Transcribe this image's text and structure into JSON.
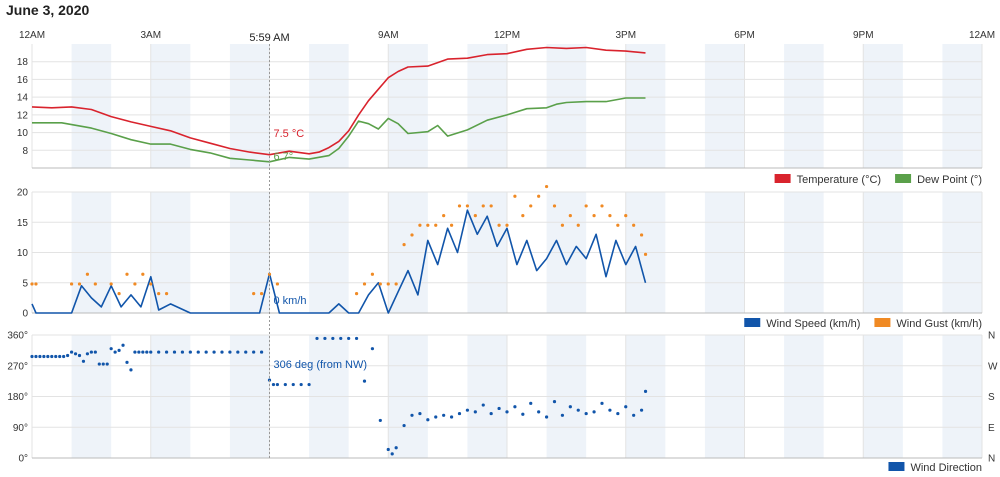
{
  "title": "June 3, 2020",
  "cursor_time": "5:59 AM",
  "time_axis": {
    "labels": [
      "12AM",
      "3AM",
      "6AM",
      "9AM",
      "12PM",
      "3PM",
      "6PM",
      "9PM",
      "12AM"
    ],
    "range_hours": [
      0,
      24
    ]
  },
  "chart_data": [
    {
      "type": "line",
      "x_unit": "hour of day",
      "ylim": [
        6,
        20
      ],
      "yticks": [
        "8",
        "10",
        "12",
        "14",
        "16",
        "18"
      ],
      "ytick_values": [
        8,
        10,
        12,
        14,
        16,
        18
      ],
      "colors": {
        "temperature": "#d9232d",
        "dew_point": "#5aa04a"
      },
      "legend": [
        "Temperature (°C)",
        "Dew Point (°)"
      ],
      "legend_position": "bottom-right",
      "readout": {
        "temperature": "7.5 °C",
        "dew_point": "6.7°"
      },
      "series": [
        {
          "name": "Temperature (°C)",
          "x": [
            0,
            0.5,
            1,
            1.5,
            2,
            2.5,
            3,
            3.5,
            4,
            4.5,
            5,
            5.5,
            6,
            6.5,
            7,
            7.25,
            7.5,
            7.75,
            8,
            8.25,
            8.5,
            9,
            9.25,
            9.5,
            10,
            10.5,
            11,
            11.5,
            12,
            12.5,
            13,
            13.5,
            14,
            14.5,
            15,
            15.5
          ],
          "y": [
            12.9,
            12.8,
            12.9,
            12.6,
            11.8,
            11.2,
            10.7,
            10.2,
            9.4,
            8.8,
            8.2,
            7.8,
            7.5,
            7.9,
            7.6,
            7.8,
            8.3,
            9.0,
            10.2,
            12.0,
            13.6,
            16.2,
            16.9,
            17.4,
            17.5,
            18.3,
            18.4,
            18.8,
            18.9,
            19.4,
            19.6,
            19.5,
            19.6,
            19.3,
            19.2,
            19.0
          ]
        },
        {
          "name": "Dew Point (°)",
          "x": [
            0,
            0.75,
            1.5,
            2,
            2.5,
            3,
            3.5,
            4,
            4.5,
            5,
            5.5,
            6,
            6.5,
            7,
            7.5,
            7.75,
            8,
            8.25,
            8.5,
            8.75,
            9,
            9.25,
            9.5,
            10,
            10.25,
            10.5,
            11,
            11.5,
            12,
            12.5,
            13,
            13.25,
            13.5,
            14,
            14.5,
            15,
            15.5
          ],
          "y": [
            11.1,
            11.1,
            10.5,
            9.9,
            9.2,
            8.7,
            8.7,
            8.1,
            7.7,
            7.1,
            6.9,
            6.7,
            7.2,
            7.0,
            7.4,
            8.2,
            9.6,
            11.3,
            11.0,
            10.4,
            11.6,
            11.0,
            9.9,
            10.1,
            10.8,
            9.6,
            10.3,
            11.4,
            12.0,
            12.7,
            12.8,
            13.2,
            13.4,
            13.5,
            13.5,
            13.9,
            13.9
          ]
        }
      ]
    },
    {
      "type": "line",
      "x_unit": "hour of day",
      "ylim": [
        0,
        20
      ],
      "yticks": [
        "0",
        "5",
        "10",
        "15",
        "20"
      ],
      "ytick_values": [
        0,
        5,
        10,
        15,
        20
      ],
      "colors": {
        "wind_speed": "#1155aa",
        "wind_gust": "#f08a24"
      },
      "legend": [
        "Wind Speed (km/h)",
        "Wind Gust (km/h)"
      ],
      "legend_position": "bottom-right",
      "readout": {
        "wind_speed": "0 km/h"
      },
      "series": [
        {
          "name": "Wind Speed (km/h)",
          "x": [
            0,
            0.1,
            1,
            1.25,
            1.5,
            1.75,
            2,
            2.25,
            2.5,
            2.75,
            3,
            3.2,
            3.5,
            4,
            5.5,
            5.75,
            6,
            6.25,
            6.5,
            7,
            7.5,
            7.75,
            8,
            8.25,
            8.5,
            8.75,
            9,
            9.25,
            9.5,
            9.75,
            10,
            10.25,
            10.5,
            10.75,
            11,
            11.25,
            11.5,
            11.75,
            12,
            12.25,
            12.5,
            12.75,
            13,
            13.25,
            13.5,
            13.75,
            14,
            14.25,
            14.5,
            14.75,
            15,
            15.25,
            15.5
          ],
          "y": [
            1.5,
            0,
            0,
            4.5,
            2.5,
            1,
            4.5,
            1,
            3,
            1,
            6,
            0.5,
            1.5,
            0,
            0,
            0,
            6.5,
            0,
            0,
            0,
            0,
            1.5,
            0,
            0,
            3,
            5,
            0,
            3.5,
            7,
            3,
            12,
            8,
            14,
            10,
            17,
            13,
            16,
            11,
            14,
            8,
            12,
            7,
            9,
            12,
            8,
            11,
            9,
            13,
            6,
            12,
            8,
            11,
            5
          ]
        },
        {
          "name": "Wind Gust (km/h)",
          "x": [
            0,
            0.1,
            1,
            1.2,
            1.4,
            1.6,
            2,
            2.2,
            2.4,
            2.6,
            2.8,
            3,
            3.2,
            3.4,
            5.6,
            5.8,
            6,
            6.2,
            8.2,
            8.4,
            8.6,
            8.8,
            9,
            9.2,
            9.4,
            9.6,
            9.8,
            10,
            10.2,
            10.4,
            10.6,
            10.8,
            11,
            11.2,
            11.4,
            11.6,
            11.8,
            12,
            12.2,
            12.4,
            12.6,
            12.8,
            13,
            13.2,
            13.4,
            13.6,
            13.8,
            14,
            14.2,
            14.4,
            14.6,
            14.8,
            15,
            15.2,
            15.4,
            15.5
          ],
          "y": [
            4.8,
            4.8,
            4.8,
            4.8,
            6.4,
            4.8,
            4.8,
            3.2,
            6.4,
            4.8,
            6.4,
            4.8,
            3.2,
            3.2,
            3.2,
            3.2,
            6.4,
            4.8,
            3.2,
            4.8,
            6.4,
            4.8,
            4.8,
            4.8,
            11.3,
            12.9,
            14.5,
            14.5,
            14.5,
            16.1,
            14.5,
            17.7,
            17.7,
            16.1,
            17.7,
            17.7,
            14.5,
            14.5,
            19.3,
            16.1,
            17.7,
            19.3,
            20.9,
            17.7,
            14.5,
            16.1,
            14.5,
            17.7,
            16.1,
            17.7,
            16.1,
            14.5,
            16.1,
            14.5,
            12.9,
            9.7
          ]
        }
      ]
    },
    {
      "type": "scatter",
      "x_unit": "hour of day",
      "ylim": [
        0,
        360
      ],
      "yticks": [
        "0°",
        "90°",
        "180°",
        "270°",
        "360°"
      ],
      "ytick_values": [
        0,
        90,
        180,
        270,
        360
      ],
      "right_ticks": [
        "N",
        "W",
        "S",
        "E",
        "N"
      ],
      "right_tick_values": [
        360,
        270,
        180,
        90,
        0
      ],
      "colors": {
        "wind_direction": "#1155aa"
      },
      "legend": [
        "Wind Direction"
      ],
      "legend_position": "bottom-right",
      "readout": {
        "wind_direction": "306 deg (from NW)"
      },
      "series": [
        {
          "name": "Wind Direction",
          "x": [
            0,
            0.1,
            0.2,
            0.3,
            0.4,
            0.5,
            0.6,
            0.7,
            0.8,
            0.9,
            1.0,
            1.1,
            1.2,
            1.3,
            1.4,
            1.5,
            1.6,
            1.7,
            1.8,
            1.9,
            2.0,
            2.1,
            2.2,
            2.3,
            2.4,
            2.5,
            2.6,
            2.7,
            2.8,
            2.9,
            3.0,
            3.2,
            3.4,
            3.6,
            3.8,
            4.0,
            4.2,
            4.4,
            4.6,
            4.8,
            5.0,
            5.2,
            5.4,
            5.6,
            5.8,
            6.0,
            6.1,
            6.2,
            6.4,
            6.6,
            6.8,
            7.0,
            7.2,
            7.4,
            7.6,
            7.8,
            8.0,
            8.2,
            8.4,
            8.6,
            8.8,
            9.0,
            9.1,
            9.2,
            9.4,
            9.6,
            9.8,
            10.0,
            10.2,
            10.4,
            10.6,
            10.8,
            11.0,
            11.2,
            11.4,
            11.6,
            11.8,
            12.0,
            12.2,
            12.4,
            12.6,
            12.8,
            13.0,
            13.2,
            13.4,
            13.6,
            13.8,
            14.0,
            14.2,
            14.4,
            14.6,
            14.8,
            15.0,
            15.2,
            15.4,
            15.5
          ],
          "y": [
            297,
            297,
            297,
            297,
            297,
            297,
            297,
            297,
            297,
            300,
            310,
            305,
            300,
            283,
            305,
            310,
            310,
            275,
            275,
            275,
            320,
            310,
            315,
            330,
            280,
            258,
            310,
            310,
            310,
            310,
            310,
            310,
            310,
            310,
            310,
            310,
            310,
            310,
            310,
            310,
            310,
            310,
            310,
            310,
            310,
            228,
            215,
            215,
            215,
            215,
            215,
            215,
            350,
            350,
            350,
            350,
            350,
            350,
            225,
            320,
            110,
            25,
            12,
            30,
            95,
            125,
            130,
            112,
            120,
            125,
            120,
            130,
            140,
            135,
            155,
            130,
            145,
            135,
            150,
            128,
            160,
            135,
            120,
            165,
            125,
            150,
            140,
            130,
            135,
            160,
            140,
            130,
            150,
            125,
            140,
            195
          ]
        }
      ]
    }
  ]
}
